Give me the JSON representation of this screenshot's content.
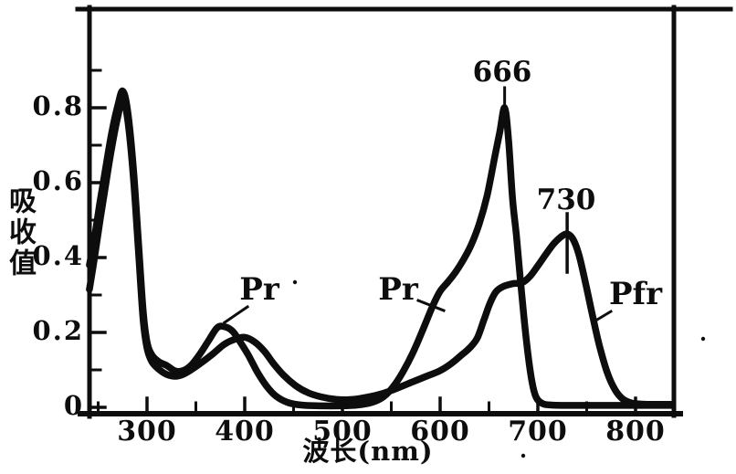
{
  "figure": {
    "background_color": "#ffffff",
    "ink_color": "#0d0d0d",
    "description": "Scanned line chart of absorption spectra of phytochrome forms Pr and Pfr"
  },
  "chart_data": {
    "type": "line",
    "title": "",
    "xlabel": "波长(nm)",
    "ylabel": "吸收值",
    "xlim": [
      240,
      845
    ],
    "ylim": [
      0,
      1.05
    ],
    "grid": false,
    "frame": "full-box",
    "legend_position": "inline-labels",
    "x_ticks_major": [
      300,
      400,
      500,
      600,
      700,
      800
    ],
    "x_tick_labels": [
      "300",
      "400",
      "500",
      "600",
      "700",
      "800"
    ],
    "x_ticks_minor": [
      250,
      350,
      450,
      550,
      650,
      750
    ],
    "y_ticks_major": [
      0,
      0.2,
      0.4,
      0.6,
      0.8
    ],
    "y_tick_labels": [
      "0",
      "0.2",
      "0.4",
      "0.6",
      "0.8"
    ],
    "y_ticks_minor": [
      0.1,
      0.3,
      0.5,
      0.7,
      0.9
    ],
    "annotations": {
      "peak_666": {
        "text": "666",
        "nm": 666,
        "value": 0.8,
        "series": "Pr"
      },
      "peak_730": {
        "text": "730",
        "nm": 730,
        "value": 0.46,
        "series": "Pfr"
      },
      "pr_blue": {
        "text": "Pr",
        "points_to_nm": 380
      },
      "pr_red": {
        "text": "Pr",
        "points_to_nm": 610
      },
      "pfr": {
        "text": "Pfr",
        "points_to_nm": 760
      }
    },
    "series": [
      {
        "name": "Pr",
        "peaks_nm": [
          275,
          376,
          666
        ],
        "points": [
          [
            241,
            0.38
          ],
          [
            246,
            0.45
          ],
          [
            252,
            0.55
          ],
          [
            258,
            0.645
          ],
          [
            264,
            0.735
          ],
          [
            270,
            0.805
          ],
          [
            275,
            0.845
          ],
          [
            280,
            0.795
          ],
          [
            286,
            0.64
          ],
          [
            291,
            0.45
          ],
          [
            296,
            0.26
          ],
          [
            300,
            0.175
          ],
          [
            305,
            0.14
          ],
          [
            312,
            0.122
          ],
          [
            320,
            0.112
          ],
          [
            329,
            0.097
          ],
          [
            337,
            0.098
          ],
          [
            345,
            0.112
          ],
          [
            354,
            0.142
          ],
          [
            363,
            0.178
          ],
          [
            372,
            0.213
          ],
          [
            380,
            0.215
          ],
          [
            388,
            0.202
          ],
          [
            396,
            0.172
          ],
          [
            404,
            0.138
          ],
          [
            413,
            0.094
          ],
          [
            422,
            0.058
          ],
          [
            432,
            0.03
          ],
          [
            444,
            0.013
          ],
          [
            458,
            0.006
          ],
          [
            478,
            0.004
          ],
          [
            498,
            0.004
          ],
          [
            515,
            0.006
          ],
          [
            530,
            0.013
          ],
          [
            542,
            0.028
          ],
          [
            552,
            0.055
          ],
          [
            562,
            0.095
          ],
          [
            572,
            0.145
          ],
          [
            582,
            0.205
          ],
          [
            592,
            0.268
          ],
          [
            600,
            0.31
          ],
          [
            608,
            0.335
          ],
          [
            616,
            0.362
          ],
          [
            624,
            0.395
          ],
          [
            632,
            0.435
          ],
          [
            640,
            0.49
          ],
          [
            648,
            0.565
          ],
          [
            656,
            0.67
          ],
          [
            661,
            0.735
          ],
          [
            666,
            0.8
          ],
          [
            670,
            0.715
          ],
          [
            674,
            0.56
          ],
          [
            678,
            0.46
          ],
          [
            682,
            0.345
          ],
          [
            686,
            0.235
          ],
          [
            690,
            0.14
          ],
          [
            694,
            0.068
          ],
          [
            698,
            0.028
          ],
          [
            704,
            0.011
          ],
          [
            714,
            0.006
          ],
          [
            740,
            0.005
          ],
          [
            790,
            0.005
          ],
          [
            838,
            0.005
          ]
        ]
      },
      {
        "name": "Pfr",
        "peaks_nm": [
          275,
          400,
          730
        ],
        "points": [
          [
            241,
            0.315
          ],
          [
            246,
            0.395
          ],
          [
            252,
            0.5
          ],
          [
            258,
            0.6
          ],
          [
            264,
            0.695
          ],
          [
            270,
            0.775
          ],
          [
            275,
            0.822
          ],
          [
            280,
            0.772
          ],
          [
            286,
            0.615
          ],
          [
            291,
            0.425
          ],
          [
            296,
            0.235
          ],
          [
            300,
            0.158
          ],
          [
            305,
            0.122
          ],
          [
            312,
            0.102
          ],
          [
            320,
            0.088
          ],
          [
            329,
            0.083
          ],
          [
            337,
            0.088
          ],
          [
            345,
            0.1
          ],
          [
            355,
            0.118
          ],
          [
            367,
            0.142
          ],
          [
            379,
            0.168
          ],
          [
            390,
            0.182
          ],
          [
            400,
            0.187
          ],
          [
            410,
            0.175
          ],
          [
            420,
            0.15
          ],
          [
            430,
            0.115
          ],
          [
            440,
            0.085
          ],
          [
            452,
            0.058
          ],
          [
            464,
            0.04
          ],
          [
            478,
            0.028
          ],
          [
            494,
            0.021
          ],
          [
            510,
            0.021
          ],
          [
            525,
            0.027
          ],
          [
            540,
            0.036
          ],
          [
            555,
            0.05
          ],
          [
            570,
            0.066
          ],
          [
            585,
            0.082
          ],
          [
            600,
            0.098
          ],
          [
            612,
            0.118
          ],
          [
            622,
            0.14
          ],
          [
            630,
            0.158
          ],
          [
            638,
            0.185
          ],
          [
            645,
            0.235
          ],
          [
            651,
            0.278
          ],
          [
            657,
            0.308
          ],
          [
            664,
            0.322
          ],
          [
            674,
            0.33
          ],
          [
            684,
            0.333
          ],
          [
            692,
            0.35
          ],
          [
            700,
            0.378
          ],
          [
            708,
            0.408
          ],
          [
            716,
            0.436
          ],
          [
            724,
            0.456
          ],
          [
            730,
            0.463
          ],
          [
            736,
            0.449
          ],
          [
            742,
            0.408
          ],
          [
            749,
            0.33
          ],
          [
            756,
            0.245
          ],
          [
            763,
            0.165
          ],
          [
            771,
            0.093
          ],
          [
            779,
            0.047
          ],
          [
            787,
            0.022
          ],
          [
            797,
            0.011
          ],
          [
            812,
            0.008
          ],
          [
            838,
            0.008
          ]
        ]
      }
    ]
  }
}
